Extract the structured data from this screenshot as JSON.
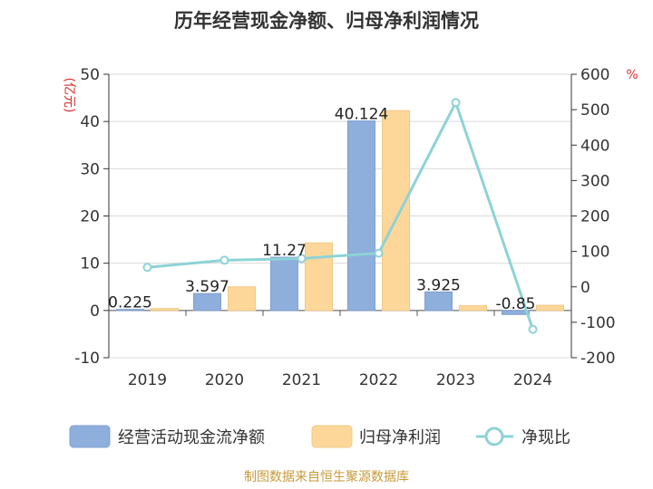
{
  "chart_data": {
    "type": "bar",
    "title": "历年经营现金净额、归母净利润情况",
    "left_axis_unit": "(亿元)",
    "right_axis_unit": "%",
    "categories": [
      "2019",
      "2020",
      "2021",
      "2022",
      "2023",
      "2024"
    ],
    "left_ylim": [
      -10,
      50
    ],
    "left_ticks": [
      -10,
      0,
      10,
      20,
      30,
      40,
      50
    ],
    "right_ylim": [
      -200,
      600
    ],
    "right_ticks": [
      -200,
      -100,
      0,
      100,
      200,
      300,
      400,
      500,
      600
    ],
    "series": [
      {
        "name": "经营活动现金流净额",
        "kind": "bar",
        "axis": "left",
        "color": "#8eaedc",
        "values": [
          0.225,
          3.597,
          11.27,
          40.124,
          3.925,
          -0.85
        ]
      },
      {
        "name": "归母净利润",
        "kind": "bar",
        "axis": "left",
        "color": "#fdd79a",
        "values": [
          0.4,
          5.0,
          14.3,
          42.3,
          1.0,
          1.1
        ]
      },
      {
        "name": "净现比",
        "kind": "line",
        "axis": "right",
        "color": "#8dd3d6",
        "values": [
          55,
          75,
          80,
          95,
          520,
          -120
        ]
      }
    ],
    "data_labels": [
      "0.225",
      "3.597",
      "11.27",
      "40.124",
      "3.925",
      "-0.85"
    ],
    "grid": true,
    "legend": "bottom"
  },
  "source_text": "制图数据来自恒生聚源数据库"
}
